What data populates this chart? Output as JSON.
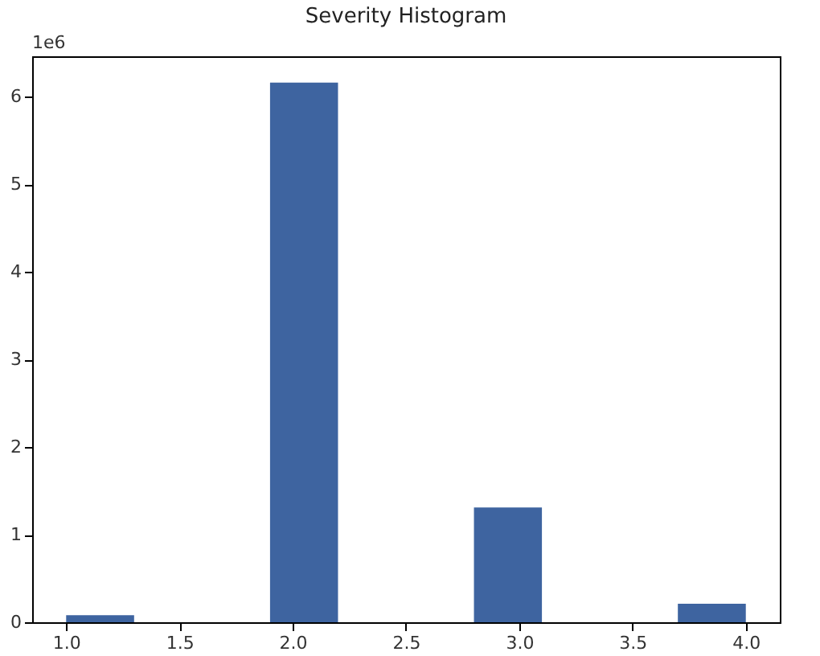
{
  "chart_data": {
    "type": "histogram",
    "title": "Severity Histogram",
    "bins": [
      1.0,
      1.3,
      1.6,
      1.9,
      2.2,
      2.5,
      2.8,
      3.1,
      3.4,
      3.7,
      4.0
    ],
    "values": [
      0.08,
      0,
      0,
      6.16,
      0,
      0,
      1.31,
      0,
      0,
      0.21
    ],
    "color": "#3e64a0",
    "xlim": [
      0.85,
      4.15
    ],
    "xticks": [
      {
        "value": 1,
        "label": "1.0"
      },
      1.5,
      {
        "value": 2,
        "label": "2.0"
      },
      2.5,
      {
        "value": 3,
        "label": "3.0"
      },
      3.5,
      {
        "value": 4,
        "label": "4.0"
      }
    ],
    "ylim": [
      0,
      6.46
    ],
    "yticks": [
      0,
      1,
      2,
      3,
      4,
      5,
      6
    ],
    "annotations": [
      "1e6"
    ],
    "grid": false
  }
}
